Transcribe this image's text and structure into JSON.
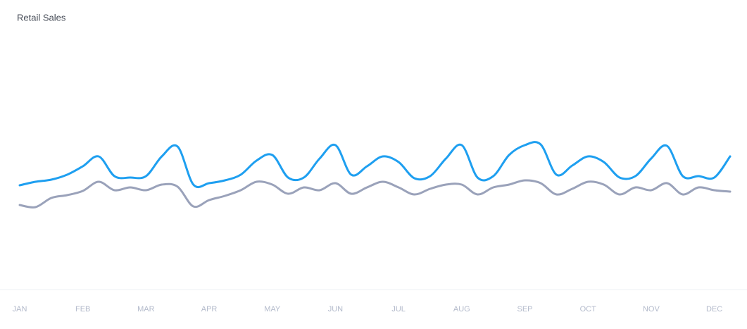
{
  "chart_data": {
    "type": "line",
    "title": "Retail Sales",
    "categories": [
      "JAN",
      null,
      null,
      null,
      "FEB",
      null,
      null,
      null,
      "MAR",
      null,
      null,
      null,
      "APR",
      null,
      null,
      null,
      "MAY",
      null,
      null,
      null,
      "JUN",
      null,
      null,
      null,
      "JUL",
      null,
      null,
      null,
      "AUG",
      null,
      null,
      null,
      "SEP",
      null,
      null,
      null,
      "OCT",
      null,
      null,
      null,
      "NOV",
      null,
      null,
      null,
      "DEC",
      null
    ],
    "series": [
      {
        "color": "#1e9ff0",
        "values": [
          148,
          153,
          156,
          163,
          175,
          189,
          161,
          159,
          161,
          189,
          203,
          149,
          151,
          155,
          163,
          183,
          191,
          159,
          159,
          186,
          205,
          163,
          175,
          189,
          181,
          158,
          161,
          186,
          205,
          159,
          161,
          191,
          205,
          206,
          163,
          176,
          189,
          181,
          159,
          161,
          186,
          204,
          161,
          161,
          159,
          189
        ]
      },
      {
        "color": "#9aa2ba",
        "values": [
          120,
          117,
          130,
          134,
          140,
          153,
          141,
          145,
          141,
          149,
          146,
          118,
          127,
          133,
          141,
          153,
          149,
          136,
          145,
          141,
          151,
          136,
          145,
          153,
          145,
          135,
          143,
          149,
          149,
          135,
          145,
          149,
          155,
          151,
          135,
          143,
          153,
          149,
          135,
          145,
          141,
          151,
          135,
          145,
          141,
          139
        ]
      }
    ],
    "ylim": [
      0,
      400
    ],
    "grid": false
  }
}
